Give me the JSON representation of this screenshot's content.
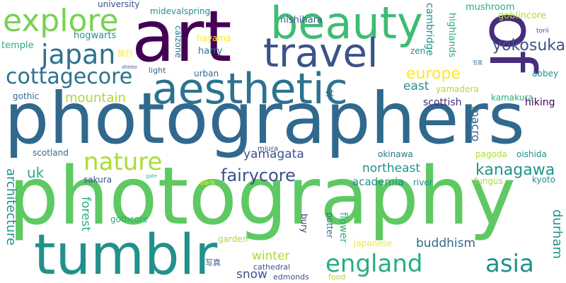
{
  "palette": {
    "dark_purple": "#440154",
    "indigo": "#472d7b",
    "slate_blue": "#3b528b",
    "steel_blue": "#31688e",
    "teal_blue": "#2c728e",
    "teal": "#21918c",
    "green_teal": "#28ae80",
    "green": "#5ec962",
    "light_green": "#7ad151",
    "yellow_green": "#aadc32",
    "yellow": "#fde725"
  },
  "words": [
    {
      "text": "photographers",
      "color": "#31688e",
      "vertical": false
    },
    {
      "text": "photography",
      "color": "#5ec962",
      "vertical": false
    },
    {
      "text": "art",
      "color": "#440154",
      "vertical": false
    },
    {
      "text": "of",
      "color": "#472d7b",
      "vertical": true
    },
    {
      "text": "beauty",
      "color": "#3dbc74",
      "vertical": false
    },
    {
      "text": "aesthetic",
      "color": "#2c728e",
      "vertical": false
    },
    {
      "text": "tumblr",
      "color": "#21918c",
      "vertical": false
    },
    {
      "text": "travel",
      "color": "#3b528b",
      "vertical": false
    },
    {
      "text": "explore",
      "color": "#7ad151",
      "vertical": false
    },
    {
      "text": "japan",
      "color": "#2c728e",
      "vertical": false
    },
    {
      "text": "cottagecore",
      "color": "#2c728e",
      "vertical": false
    },
    {
      "text": "nature",
      "color": "#aadc32",
      "vertical": false
    },
    {
      "text": "england",
      "color": "#28ae80",
      "vertical": false
    },
    {
      "text": "asia",
      "color": "#21918c",
      "vertical": false
    },
    {
      "text": "fairycore",
      "color": "#3b528b",
      "vertical": false
    },
    {
      "text": "kanagawa",
      "color": "#21918c",
      "vertical": false
    },
    {
      "text": "yokosuka",
      "color": "#3b528b",
      "vertical": false
    },
    {
      "text": "europe",
      "color": "#fde725",
      "vertical": false
    },
    {
      "text": "mountain",
      "color": "#aadc32",
      "vertical": false
    },
    {
      "text": "uk",
      "color": "#28ae80",
      "vertical": false
    },
    {
      "text": "yamagata",
      "color": "#3b528b",
      "vertical": false
    },
    {
      "text": "northeast",
      "color": "#21918c",
      "vertical": false
    },
    {
      "text": "buddhism",
      "color": "#31688e",
      "vertical": false
    },
    {
      "text": "architecture",
      "color": "#21918c",
      "vertical": true
    },
    {
      "text": "forest",
      "color": "#28ae80",
      "vertical": true
    },
    {
      "text": "winter",
      "color": "#aadc32",
      "vertical": false
    },
    {
      "text": "snow",
      "color": "#3b528b",
      "vertical": false
    },
    {
      "text": "durham",
      "color": "#21918c",
      "vertical": true
    },
    {
      "text": "east",
      "color": "#21918c",
      "vertical": false
    },
    {
      "text": "scottish",
      "color": "#472d7b",
      "vertical": false
    },
    {
      "text": "macro",
      "color": "#31688e",
      "vertical": true
    },
    {
      "text": "hiking",
      "color": "#440154",
      "vertical": false
    },
    {
      "text": "academia",
      "color": "#21918c",
      "vertical": false
    },
    {
      "text": "university",
      "color": "#3b528b",
      "vertical": false
    },
    {
      "text": "midevalspring",
      "color": "#21918c",
      "vertical": false
    },
    {
      "text": "mushroom",
      "color": "#28ae80",
      "vertical": false
    },
    {
      "text": "goblincore",
      "color": "#aadc32",
      "vertical": false
    },
    {
      "text": "hogwarts",
      "color": "#21918c",
      "vertical": false
    },
    {
      "text": "temple",
      "color": "#28ae80",
      "vertical": false
    },
    {
      "text": "calzone",
      "color": "#2c728e",
      "vertical": true
    },
    {
      "text": "hayama",
      "color": "#fde725",
      "vertical": false
    },
    {
      "text": "nishihara",
      "color": "#3b528b",
      "vertical": false
    },
    {
      "text": "cambridge",
      "color": "#21918c",
      "vertical": true
    },
    {
      "text": "highlands",
      "color": "#28ae80",
      "vertical": true
    },
    {
      "text": "torii",
      "color": "#3b528b",
      "vertical": false
    },
    {
      "text": "abbey",
      "color": "#21918c",
      "vertical": false
    },
    {
      "text": "harry",
      "color": "#2c728e",
      "vertical": false
    },
    {
      "text": "zen",
      "color": "#21918c",
      "vertical": false
    },
    {
      "text": "light",
      "color": "#31688e",
      "vertical": false
    },
    {
      "text": "shinto",
      "color": "#3b528b",
      "vertical": false
    },
    {
      "text": "urban",
      "color": "#31688e",
      "vertical": false
    },
    {
      "text": "gothic",
      "color": "#31688e",
      "vertical": false
    },
    {
      "text": "yamadera",
      "color": "#aadc32",
      "vertical": false
    },
    {
      "text": "kamakura",
      "color": "#28ae80",
      "vertical": false
    },
    {
      "text": "st",
      "color": "#31688e",
      "vertical": false
    },
    {
      "text": "scotland",
      "color": "#31688e",
      "vertical": false
    },
    {
      "text": "miura",
      "color": "#3b528b",
      "vertical": false
    },
    {
      "text": "okinawa",
      "color": "#2c728e",
      "vertical": false
    },
    {
      "text": "pagoda",
      "color": "#aadc32",
      "vertical": false
    },
    {
      "text": "oishida",
      "color": "#21918c",
      "vertical": false
    },
    {
      "text": "sakura",
      "color": "#3b528b",
      "vertical": false
    },
    {
      "text": "gate",
      "color": "#28ae80",
      "vertical": false
    },
    {
      "text": "dark",
      "color": "#fde725",
      "vertical": false
    },
    {
      "text": "river",
      "color": "#21918c",
      "vertical": false
    },
    {
      "text": "fungus",
      "color": "#aadc32",
      "vertical": false
    },
    {
      "text": "kyoto",
      "color": "#21918c",
      "vertical": false
    },
    {
      "text": "gothcore",
      "color": "#28ae80",
      "vertical": false
    },
    {
      "text": "bury",
      "color": "#472d7b",
      "vertical": true
    },
    {
      "text": "potter",
      "color": "#2c728e",
      "vertical": true
    },
    {
      "text": "flower",
      "color": "#28ae80",
      "vertical": true
    },
    {
      "text": "garden",
      "color": "#aadc32",
      "vertical": false
    },
    {
      "text": "japanese",
      "color": "#fde725",
      "vertical": false
    },
    {
      "text": "cathedral",
      "color": "#3b528b",
      "vertical": false
    },
    {
      "text": "edmonds",
      "color": "#3b528b",
      "vertical": false
    },
    {
      "text": "food",
      "color": "#aadc32",
      "vertical": false
    },
    {
      "text": "旅行",
      "color": "#fde725",
      "vertical": false
    },
    {
      "text": "写真",
      "color": "#31688e",
      "vertical": false
    },
    {
      "text": "写真",
      "color": "#3b528b",
      "vertical": false
    }
  ]
}
